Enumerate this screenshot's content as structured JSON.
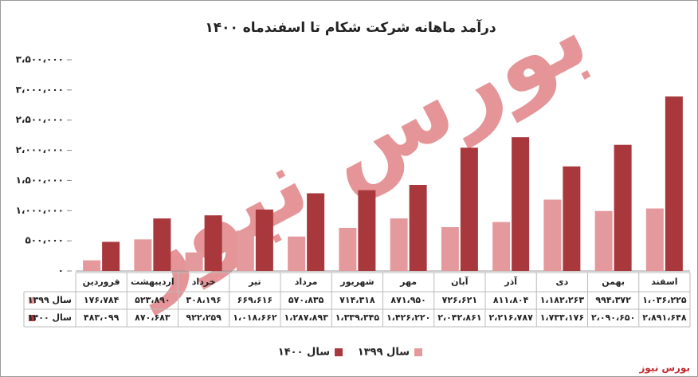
{
  "chart_data": {
    "type": "bar",
    "title": "درآمد ماهانه شرکت شکام تا اسفندماه ۱۴۰۰",
    "categories": [
      "فروردین",
      "اردیبهشت",
      "خرداد",
      "تیر",
      "مرداد",
      "شهریور",
      "مهر",
      "آبان",
      "آذر",
      "دی",
      "بهمن",
      "اسفند"
    ],
    "series": [
      {
        "name": "سال ۱۳۹۹",
        "color": "#e49a9c",
        "values": [
          176784,
          523890,
          308196,
          669616,
          570835,
          714318,
          871950,
          726621,
          811804,
          1182263,
          994372,
          1036225
        ],
        "value_labels": [
          "۱۷۶،۷۸۴",
          "۵۲۳،۸۹۰",
          "۳۰۸،۱۹۶",
          "۶۶۹،۶۱۶",
          "۵۷۰،۸۳۵",
          "۷۱۴،۳۱۸",
          "۸۷۱،۹۵۰",
          "۷۲۶،۶۲۱",
          "۸۱۱،۸۰۴",
          "۱،۱۸۲،۲۶۳",
          "۹۹۴،۳۷۲",
          "۱،۰۳۶،۲۲۵"
        ]
      },
      {
        "name": "سال ۱۴۰۰",
        "color": "#a8383b",
        "values": [
          483099,
          870683,
          922259,
          1018662,
          1287893,
          1339345,
          1426220,
          2042861,
          2216787,
          1733176,
          2090650,
          2891648
        ],
        "value_labels": [
          "۴۸۳،۰۹۹",
          "۸۷۰،۶۸۳",
          "۹۲۲،۲۵۹",
          "۱،۰۱۸،۶۶۲",
          "۱،۲۸۷،۸۹۳",
          "۱،۳۳۹،۳۴۵",
          "۱،۴۲۶،۲۲۰",
          "۲،۰۴۲،۸۶۱",
          "۲،۲۱۶،۷۸۷",
          "۱،۷۳۳،۱۷۶",
          "۲،۰۹۰،۶۵۰",
          "۲،۸۹۱،۶۴۸"
        ]
      }
    ],
    "ylim": [
      0,
      3500000
    ],
    "yticks": [
      {
        "value": 0,
        "label": "۰"
      },
      {
        "value": 500000,
        "label": "۵۰۰،۰۰۰"
      },
      {
        "value": 1000000,
        "label": "۱،۰۰۰،۰۰۰"
      },
      {
        "value": 1500000,
        "label": "۱،۵۰۰،۰۰۰"
      },
      {
        "value": 2000000,
        "label": "۲،۰۰۰،۰۰۰"
      },
      {
        "value": 2500000,
        "label": "۲،۵۰۰،۰۰۰"
      },
      {
        "value": 3000000,
        "label": "۳،۰۰۰،۰۰۰"
      },
      {
        "value": 3500000,
        "label": "۳،۵۰۰،۰۰۰"
      }
    ],
    "grid": false,
    "legend": "bottom",
    "watermark": "بورس نیوز",
    "source": "بورس نیوز"
  }
}
